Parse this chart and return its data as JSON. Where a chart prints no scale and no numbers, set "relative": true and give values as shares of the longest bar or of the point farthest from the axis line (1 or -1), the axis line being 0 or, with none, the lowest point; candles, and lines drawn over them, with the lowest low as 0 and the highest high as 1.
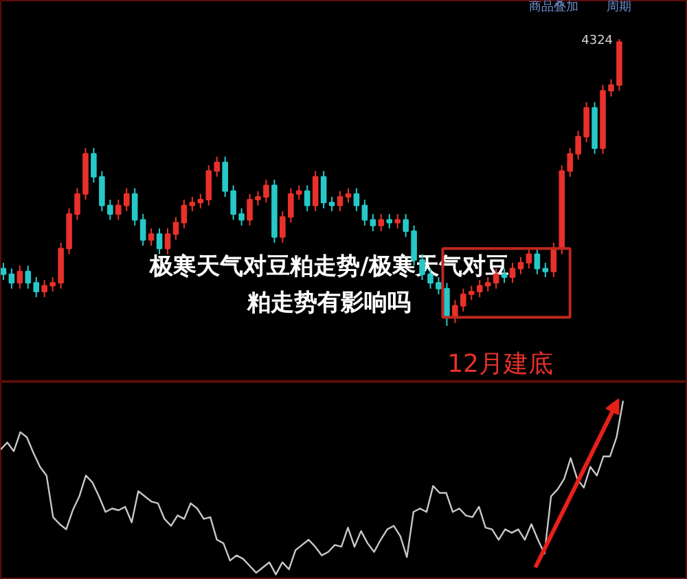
{
  "chart_data": [
    {
      "type": "candlestick",
      "relative": true,
      "title": "极寒天气对豆粕走势/极寒天气对豆粕走势有影响吗",
      "categories": [
        null,
        null,
        null,
        null,
        null,
        null,
        null,
        null,
        null,
        null,
        null,
        null,
        null,
        null,
        null,
        null,
        null,
        null,
        null,
        null,
        null,
        null,
        null,
        null,
        null,
        null,
        null,
        null,
        null,
        null,
        null,
        null,
        null,
        null,
        null,
        null,
        null,
        null,
        null,
        null,
        null,
        null,
        null,
        null,
        null,
        null,
        null,
        null,
        null,
        null,
        null,
        null,
        null,
        null,
        null,
        null,
        null,
        null,
        null,
        null,
        null,
        null,
        null,
        null,
        null,
        null,
        null,
        null,
        null,
        null,
        null,
        null,
        null,
        null,
        null,
        null
      ],
      "ohlc": [
        [
          0.2,
          0.22,
          0.16,
          0.18
        ],
        [
          0.18,
          0.2,
          0.13,
          0.15
        ],
        [
          0.15,
          0.21,
          0.13,
          0.19
        ],
        [
          0.19,
          0.21,
          0.13,
          0.15
        ],
        [
          0.15,
          0.17,
          0.1,
          0.12
        ],
        [
          0.12,
          0.16,
          0.1,
          0.14
        ],
        [
          0.14,
          0.17,
          0.12,
          0.15
        ],
        [
          0.15,
          0.29,
          0.13,
          0.27
        ],
        [
          0.27,
          0.41,
          0.25,
          0.39
        ],
        [
          0.39,
          0.48,
          0.37,
          0.46
        ],
        [
          0.46,
          0.62,
          0.44,
          0.6
        ],
        [
          0.6,
          0.62,
          0.5,
          0.52
        ],
        [
          0.52,
          0.54,
          0.4,
          0.42
        ],
        [
          0.42,
          0.44,
          0.37,
          0.39
        ],
        [
          0.39,
          0.44,
          0.37,
          0.42
        ],
        [
          0.42,
          0.48,
          0.4,
          0.46
        ],
        [
          0.46,
          0.48,
          0.35,
          0.37
        ],
        [
          0.37,
          0.39,
          0.28,
          0.3
        ],
        [
          0.3,
          0.34,
          0.28,
          0.32
        ],
        [
          0.32,
          0.34,
          0.25,
          0.27
        ],
        [
          0.27,
          0.34,
          0.25,
          0.32
        ],
        [
          0.32,
          0.38,
          0.3,
          0.36
        ],
        [
          0.36,
          0.44,
          0.34,
          0.42
        ],
        [
          0.42,
          0.45,
          0.4,
          0.43
        ],
        [
          0.43,
          0.46,
          0.41,
          0.44
        ],
        [
          0.44,
          0.56,
          0.42,
          0.54
        ],
        [
          0.54,
          0.59,
          0.52,
          0.57
        ],
        [
          0.57,
          0.59,
          0.45,
          0.47
        ],
        [
          0.47,
          0.49,
          0.37,
          0.39
        ],
        [
          0.39,
          0.41,
          0.35,
          0.37
        ],
        [
          0.37,
          0.46,
          0.35,
          0.44
        ],
        [
          0.44,
          0.47,
          0.42,
          0.45
        ],
        [
          0.45,
          0.51,
          0.43,
          0.49
        ],
        [
          0.49,
          0.51,
          0.29,
          0.31
        ],
        [
          0.31,
          0.4,
          0.29,
          0.38
        ],
        [
          0.38,
          0.48,
          0.36,
          0.46
        ],
        [
          0.46,
          0.49,
          0.44,
          0.47
        ],
        [
          0.47,
          0.49,
          0.4,
          0.42
        ],
        [
          0.42,
          0.54,
          0.4,
          0.52
        ],
        [
          0.52,
          0.54,
          0.41,
          0.43
        ],
        [
          0.43,
          0.45,
          0.4,
          0.42
        ],
        [
          0.42,
          0.47,
          0.4,
          0.45
        ],
        [
          0.45,
          0.48,
          0.43,
          0.46
        ],
        [
          0.46,
          0.48,
          0.4,
          0.42
        ],
        [
          0.42,
          0.44,
          0.35,
          0.37
        ],
        [
          0.37,
          0.39,
          0.33,
          0.35
        ],
        [
          0.35,
          0.39,
          0.33,
          0.37
        ],
        [
          0.37,
          0.39,
          0.34,
          0.36
        ],
        [
          0.36,
          0.39,
          0.34,
          0.37
        ],
        [
          0.37,
          0.39,
          0.31,
          0.33
        ],
        [
          0.33,
          0.35,
          0.21,
          0.23
        ],
        [
          0.23,
          0.25,
          0.16,
          0.18
        ],
        [
          0.18,
          0.2,
          0.13,
          0.15
        ],
        [
          0.15,
          0.17,
          0.11,
          0.13
        ],
        [
          0.13,
          0.15,
          0.0,
          0.03
        ],
        [
          0.03,
          0.09,
          0.01,
          0.07
        ],
        [
          0.07,
          0.13,
          0.05,
          0.11
        ],
        [
          0.11,
          0.14,
          0.09,
          0.12
        ],
        [
          0.12,
          0.16,
          0.1,
          0.14
        ],
        [
          0.14,
          0.17,
          0.12,
          0.15
        ],
        [
          0.15,
          0.2,
          0.13,
          0.18
        ],
        [
          0.18,
          0.2,
          0.15,
          0.17
        ],
        [
          0.17,
          0.22,
          0.15,
          0.2
        ],
        [
          0.2,
          0.24,
          0.18,
          0.22
        ],
        [
          0.22,
          0.27,
          0.2,
          0.25
        ],
        [
          0.25,
          0.27,
          0.18,
          0.2
        ],
        [
          0.2,
          0.22,
          0.17,
          0.19
        ],
        [
          0.19,
          0.29,
          0.17,
          0.27
        ],
        [
          0.27,
          0.56,
          0.25,
          0.54
        ],
        [
          0.54,
          0.62,
          0.52,
          0.6
        ],
        [
          0.6,
          0.68,
          0.58,
          0.66
        ],
        [
          0.66,
          0.78,
          0.64,
          0.76
        ],
        [
          0.76,
          0.78,
          0.6,
          0.62
        ],
        [
          0.62,
          0.84,
          0.6,
          0.82
        ],
        [
          0.82,
          0.86,
          0.8,
          0.84
        ],
        [
          0.84,
          1.0,
          0.82,
          0.99
        ]
      ],
      "colors": [
        "#27c8c8",
        "#27c8c8",
        "#e8312b",
        "#27c8c8",
        "#27c8c8",
        "#e8312b",
        "#e8312b",
        "#e8312b",
        "#e8312b",
        "#e8312b",
        "#e8312b",
        "#27c8c8",
        "#27c8c8",
        "#27c8c8",
        "#e8312b",
        "#e8312b",
        "#27c8c8",
        "#27c8c8",
        "#e8312b",
        "#27c8c8",
        "#e8312b",
        "#e8312b",
        "#e8312b",
        "#e8312b",
        "#e8312b",
        "#e8312b",
        "#e8312b",
        "#27c8c8",
        "#27c8c8",
        "#27c8c8",
        "#e8312b",
        "#e8312b",
        "#e8312b",
        "#27c8c8",
        "#e8312b",
        "#e8312b",
        "#e8312b",
        "#27c8c8",
        "#e8312b",
        "#27c8c8",
        "#27c8c8",
        "#e8312b",
        "#e8312b",
        "#27c8c8",
        "#27c8c8",
        "#27c8c8",
        "#e8312b",
        "#27c8c8",
        "#e8312b",
        "#27c8c8",
        "#27c8c8",
        "#27c8c8",
        "#27c8c8",
        "#27c8c8",
        "#27c8c8",
        "#e8312b",
        "#e8312b",
        "#e8312b",
        "#e8312b",
        "#e8312b",
        "#e8312b",
        "#27c8c8",
        "#e8312b",
        "#e8312b",
        "#e8312b",
        "#27c8c8",
        "#27c8c8",
        "#e8312b",
        "#e8312b",
        "#e8312b",
        "#e8312b",
        "#e8312b",
        "#27c8c8",
        "#e8312b",
        "#e8312b",
        "#e8312b"
      ],
      "annotations": [
        "商品叠加",
        "周期",
        "4324",
        "12月建底"
      ]
    },
    {
      "type": "line",
      "relative": true,
      "categories": [
        null,
        null,
        null,
        null,
        null,
        null,
        null,
        null,
        null,
        null,
        null,
        null,
        null,
        null,
        null,
        null,
        null,
        null,
        null,
        null,
        null,
        null,
        null,
        null,
        null,
        null,
        null,
        null,
        null,
        null,
        null,
        null,
        null,
        null,
        null,
        null,
        null,
        null,
        null,
        null,
        null,
        null,
        null,
        null,
        null,
        null,
        null,
        null,
        null,
        null,
        null,
        null,
        null,
        null,
        null,
        null,
        null,
        null,
        null,
        null,
        null,
        null,
        null,
        null,
        null,
        null,
        null,
        null,
        null,
        null,
        null,
        null,
        null,
        null,
        null,
        null,
        null,
        null,
        null,
        null,
        null,
        null,
        null,
        null,
        null,
        null,
        null,
        null,
        null,
        null,
        null,
        null,
        null,
        null,
        null,
        null
      ],
      "series": [
        {
          "color": "#c8c8c8",
          "values": [
            0.72,
            0.76,
            0.71,
            0.82,
            0.79,
            0.7,
            0.62,
            0.57,
            0.33,
            0.29,
            0.26,
            0.37,
            0.45,
            0.57,
            0.53,
            0.45,
            0.36,
            0.38,
            0.37,
            0.39,
            0.3,
            0.48,
            0.45,
            0.42,
            0.41,
            0.32,
            0.28,
            0.34,
            0.32,
            0.41,
            0.38,
            0.32,
            0.33,
            0.2,
            0.18,
            0.08,
            0.11,
            0.09,
            0.05,
            0.01,
            0.04,
            0.07,
            0.0,
            0.07,
            0.03,
            0.14,
            0.17,
            0.2,
            0.16,
            0.11,
            0.13,
            0.17,
            0.16,
            0.27,
            0.16,
            0.25,
            0.18,
            0.13,
            0.2,
            0.26,
            0.28,
            0.22,
            0.1,
            0.36,
            0.38,
            0.36,
            0.51,
            0.47,
            0.47,
            0.36,
            0.38,
            0.34,
            0.33,
            0.39,
            0.27,
            0.26,
            0.2,
            0.26,
            0.24,
            0.26,
            0.2,
            0.29,
            0.2,
            0.12,
            0.45,
            0.49,
            0.55,
            0.67,
            0.55,
            0.5,
            0.62,
            0.57,
            0.68,
            0.68,
            0.79,
            1.0
          ]
        }
      ]
    }
  ]
}
